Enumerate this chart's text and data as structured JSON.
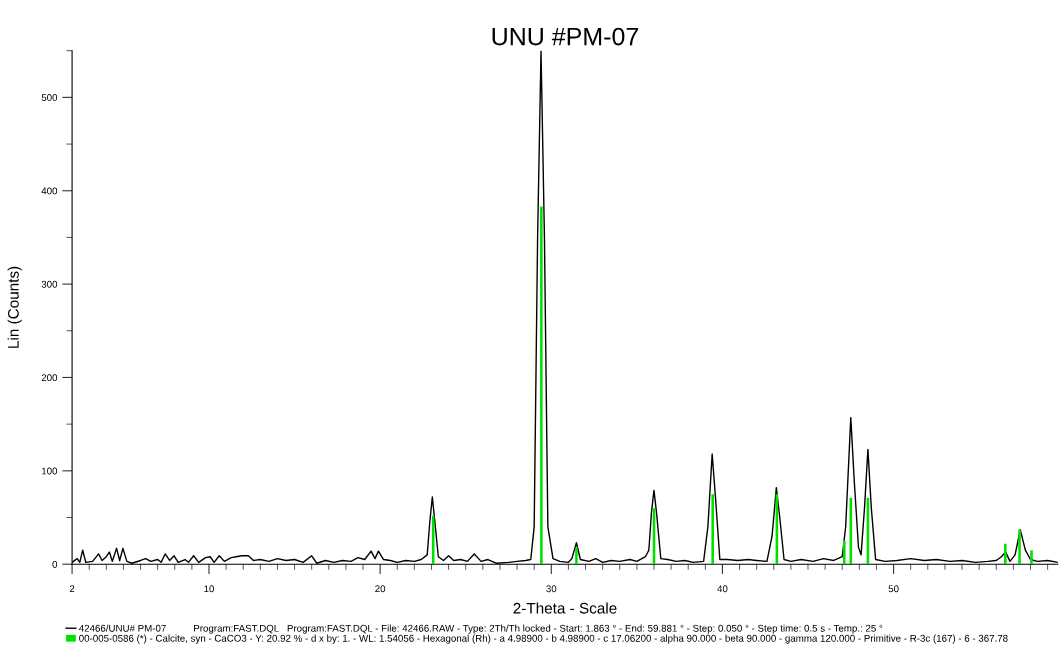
{
  "chart_data": {
    "type": "line",
    "title": "UNU #PM-07",
    "xlabel": "2-Theta - Scale",
    "ylabel": "Lin (Counts)",
    "xlim": [
      2,
      59.6
    ],
    "ylim": [
      0,
      550
    ],
    "xticks": [
      2,
      {
        "value": 3,
        "label": null
      },
      {
        "value": 4,
        "label": null
      },
      {
        "value": 5,
        "label": null
      },
      {
        "value": 6,
        "label": null
      },
      {
        "value": 7,
        "label": null
      },
      {
        "value": 8,
        "label": null
      },
      {
        "value": 9,
        "label": null
      },
      10,
      {
        "value": 11,
        "label": null
      },
      {
        "value": 12,
        "label": null
      },
      {
        "value": 13,
        "label": null
      },
      {
        "value": 14,
        "label": null
      },
      {
        "value": 15,
        "label": null
      },
      {
        "value": 16,
        "label": null
      },
      {
        "value": 17,
        "label": null
      },
      {
        "value": 18,
        "label": null
      },
      {
        "value": 19,
        "label": null
      },
      20,
      {
        "value": 21,
        "label": null
      },
      {
        "value": 22,
        "label": null
      },
      {
        "value": 23,
        "label": null
      },
      {
        "value": 24,
        "label": null
      },
      {
        "value": 25,
        "label": null
      },
      {
        "value": 26,
        "label": null
      },
      {
        "value": 27,
        "label": null
      },
      {
        "value": 28,
        "label": null
      },
      {
        "value": 29,
        "label": null
      },
      30,
      {
        "value": 31,
        "label": null
      },
      {
        "value": 32,
        "label": null
      },
      {
        "value": 33,
        "label": null
      },
      {
        "value": 34,
        "label": null
      },
      {
        "value": 35,
        "label": null
      },
      {
        "value": 36,
        "label": null
      },
      {
        "value": 37,
        "label": null
      },
      {
        "value": 38,
        "label": null
      },
      {
        "value": 39,
        "label": null
      },
      40,
      {
        "value": 41,
        "label": null
      },
      {
        "value": 42,
        "label": null
      },
      {
        "value": 43,
        "label": null
      },
      {
        "value": 44,
        "label": null
      },
      {
        "value": 45,
        "label": null
      },
      {
        "value": 46,
        "label": null
      },
      {
        "value": 47,
        "label": null
      },
      {
        "value": 48,
        "label": null
      },
      {
        "value": 49,
        "label": null
      },
      50,
      {
        "value": 51,
        "label": null
      },
      {
        "value": 52,
        "label": null
      },
      {
        "value": 53,
        "label": null
      },
      {
        "value": 54,
        "label": null
      },
      {
        "value": 55,
        "label": null
      },
      {
        "value": 56,
        "label": null
      },
      {
        "value": 57,
        "label": null
      },
      {
        "value": 58,
        "label": null
      },
      {
        "value": 59,
        "label": null
      }
    ],
    "yticks": [
      0,
      {
        "value": 50,
        "label": null
      },
      100,
      {
        "value": 150,
        "label": null
      },
      200,
      {
        "value": 250,
        "label": null
      },
      300,
      {
        "value": 350,
        "label": null
      },
      400,
      {
        "value": 450,
        "label": null
      },
      500,
      {
        "value": 550,
        "label": null
      }
    ],
    "grid": false,
    "legend": "bottom",
    "series": [
      {
        "name": "42466/UNU# PM-07          Program:FAST.DQL   Program:FAST.DQL - File: 42466.RAW - Type: 2Th/Th locked - Start: 1.863 ° - End: 59.881 ° - Step: 0.050 ° - Step time: 0.5 s - Temp.: 25 °",
        "color": "#000000",
        "marker": "none",
        "x": [
          2.0,
          2.3,
          2.45,
          2.62,
          2.8,
          3.2,
          3.55,
          3.75,
          4.0,
          4.18,
          4.35,
          4.6,
          4.78,
          4.97,
          5.2,
          5.5,
          6.0,
          6.3,
          6.6,
          7.0,
          7.2,
          7.44,
          7.7,
          7.96,
          8.2,
          8.6,
          8.8,
          9.1,
          9.4,
          9.8,
          10.07,
          10.3,
          10.6,
          10.9,
          11.3,
          11.6,
          11.9,
          12.3,
          12.6,
          13.0,
          13.5,
          14.0,
          14.5,
          15.0,
          15.5,
          16.0,
          16.3,
          16.8,
          17.3,
          17.8,
          18.3,
          18.7,
          19.1,
          19.47,
          19.7,
          19.9,
          20.2,
          20.6,
          21.0,
          21.5,
          22.0,
          22.4,
          22.75,
          22.9,
          23.05,
          23.2,
          23.4,
          23.7,
          24.0,
          24.3,
          24.7,
          25.1,
          25.5,
          25.9,
          26.3,
          26.8,
          27.5,
          28.0,
          28.5,
          28.8,
          29.0,
          29.2,
          29.4,
          29.6,
          29.8,
          30.1,
          30.5,
          31.0,
          31.2,
          31.47,
          31.7,
          32.2,
          32.6,
          33.0,
          33.5,
          34.0,
          34.6,
          35.0,
          35.5,
          35.7,
          35.85,
          36.0,
          36.15,
          36.4,
          36.8,
          37.3,
          37.8,
          38.3,
          38.9,
          39.15,
          39.4,
          39.6,
          39.85,
          40.3,
          40.9,
          41.5,
          42.0,
          42.6,
          42.9,
          43.15,
          43.35,
          43.6,
          44.0,
          44.6,
          45.3,
          45.9,
          46.5,
          47.0,
          47.2,
          47.5,
          47.7,
          47.95,
          48.1,
          48.3,
          48.5,
          48.7,
          48.95,
          49.5,
          50.2,
          51.0,
          51.8,
          52.5,
          53.3,
          54.0,
          54.8,
          55.5,
          56.0,
          56.3,
          56.55,
          56.8,
          57.1,
          57.4,
          57.7,
          58.0,
          58.4,
          59.0,
          59.6
        ],
        "values": [
          2,
          6,
          2,
          15,
          2,
          3,
          11,
          4,
          8,
          13,
          3,
          17,
          4,
          17,
          3,
          1,
          4,
          6,
          3,
          5,
          2,
          11,
          4,
          9,
          2,
          5,
          2,
          9,
          2,
          7,
          8,
          2,
          9,
          3,
          7,
          8,
          9,
          9,
          4,
          5,
          3,
          6,
          4,
          5,
          2,
          9,
          1,
          4,
          2,
          4,
          3,
          7,
          5,
          14,
          6,
          14,
          5,
          4,
          2,
          4,
          3,
          5,
          10,
          45,
          72,
          45,
          8,
          4,
          9,
          4,
          5,
          3,
          11,
          3,
          5,
          1,
          2,
          3,
          4,
          5,
          40,
          350,
          550,
          350,
          40,
          6,
          3,
          2,
          6,
          23,
          5,
          3,
          6,
          2,
          4,
          3,
          5,
          3,
          8,
          15,
          55,
          79,
          55,
          6,
          5,
          3,
          4,
          2,
          3,
          40,
          118,
          70,
          5,
          5,
          4,
          5,
          4,
          3,
          30,
          82,
          50,
          5,
          3,
          5,
          3,
          6,
          4,
          8,
          40,
          157,
          90,
          18,
          10,
          60,
          123,
          60,
          5,
          3,
          4,
          6,
          4,
          5,
          3,
          4,
          2,
          3,
          4,
          8,
          13,
          3,
          10,
          37,
          15,
          5,
          3,
          4,
          2
        ]
      },
      {
        "name": "00-005-0586 (*) - Calcite, syn - CaCO3 - Y: 20.92 % - d x by: 1. - WL: 1.54056 - Hexagonal (Rh) - a 4.98900 - b 4.98900 - c 17.06200 - alpha 90.000 - beta 90.000 - gamma 120.000 - Primitive - R-3c (167) - 6 - 367.78",
        "type": "bar",
        "color": "#00e000",
        "x": [
          23.1,
          29.42,
          31.47,
          36.0,
          39.43,
          43.18,
          47.12,
          47.5,
          48.5,
          56.53,
          57.36,
          58.06
        ],
        "values": [
          52,
          383,
          18,
          60,
          75,
          75,
          25,
          71,
          71,
          22,
          37,
          15
        ]
      }
    ]
  }
}
